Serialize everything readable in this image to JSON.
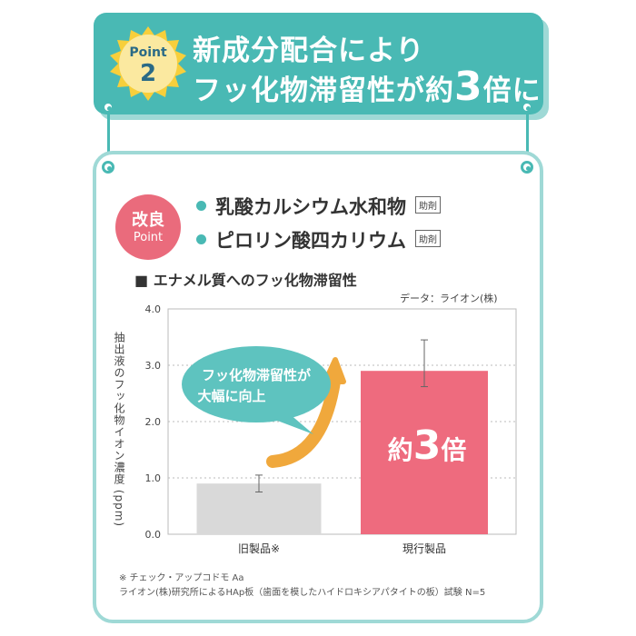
{
  "header": {
    "point_label": "Point",
    "point_number": "2",
    "line1": "新成分配合により",
    "line2_pre": "フッ化物滞留性が約",
    "line2_big": "3",
    "line2_post": "倍に"
  },
  "improve_badge": {
    "line1": "改良",
    "line2": "Point"
  },
  "features": [
    {
      "name": "乳酸カルシウム水和物",
      "tag": "助剤"
    },
    {
      "name": "ピロリン酸四カリウム",
      "tag": "助剤"
    }
  ],
  "chart_heading": "■ エナメル質へのフッ化物滞留性",
  "source": "データ：ライオン(株)",
  "callout": {
    "line1": "フッ化物滞留性が",
    "line2": "大幅に向上"
  },
  "bar_label": {
    "pre": "約",
    "big": "3",
    "post": "倍"
  },
  "colors": {
    "accent": "#49b9b4",
    "old_bar": "#d9d9d9",
    "new_bar": "#ee6b7e",
    "arrow": "#f0a83c"
  },
  "chart_data": {
    "type": "bar",
    "title": "■ エナメル質へのフッ化物滞留性",
    "ylabel": "抽出液のフッ化物イオン濃度 (ppm)",
    "xlabel": "",
    "categories": [
      "旧製品※",
      "現行製品"
    ],
    "values": [
      0.9,
      2.9
    ],
    "error_bars": [
      [
        0.75,
        1.05
      ],
      [
        2.62,
        3.45
      ]
    ],
    "ylim": [
      0,
      4
    ],
    "yticks": [
      "0.0",
      "1.0",
      "2.0",
      "3.0",
      "4.0"
    ],
    "grid": true
  },
  "footnotes": [
    "※ チェック・アップコドモ Aa",
    "ライオン(株)研究所によるHAp板（歯面を模したハイドロキシアパタイトの板）試験 N=5"
  ]
}
